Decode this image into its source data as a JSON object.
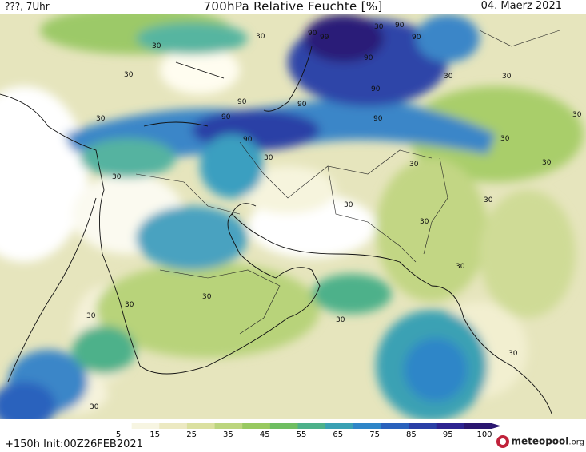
{
  "header": {
    "left_text": "???, 7Uhr",
    "title": "700hPa Relative Feuchte [%]",
    "date": "04. Maerz 2021"
  },
  "footer": {
    "run_info": "+150h  Init:00Z26FEB2021",
    "brand_name": "meteopool",
    "brand_suffix": ".org"
  },
  "legend": {
    "ticks": [
      "5",
      "15",
      "25",
      "35",
      "45",
      "55",
      "65",
      "75",
      "85",
      "95",
      "100"
    ],
    "colors": [
      "#ffffff",
      "#f7f5e2",
      "#ece9c2",
      "#dbe0a0",
      "#bcd57e",
      "#98c960",
      "#6fbe62",
      "#4db18a",
      "#3aa1b4",
      "#2f86c8",
      "#2a62bd",
      "#2a3fa6",
      "#2d2491",
      "#2a1670"
    ]
  },
  "contour_labels": [
    "30",
    "90",
    "99"
  ],
  "map_values": {
    "contour_levels": [
      30,
      90,
      99
    ]
  }
}
